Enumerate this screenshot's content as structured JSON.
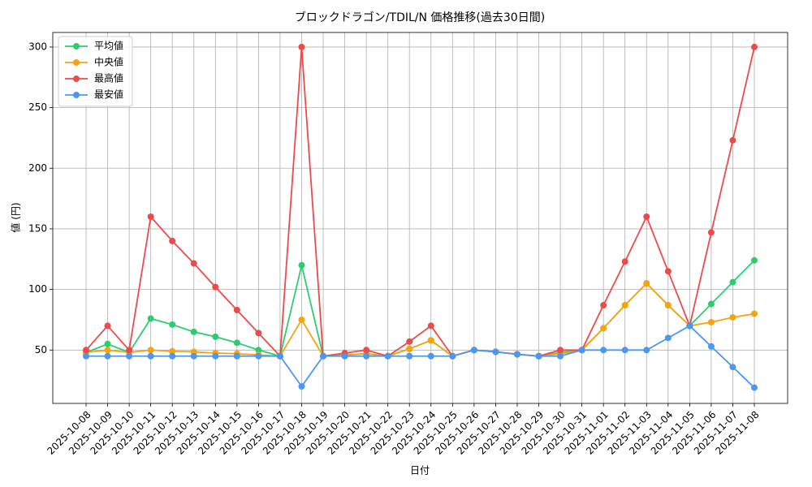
{
  "chart_data": {
    "type": "line",
    "title": "ブロックドラゴン/TDIL/N 価格推移(過去30日間)",
    "x_label": "日付",
    "y_label": "値 (円)",
    "categories": [
      "2025-10-08",
      "2025-10-09",
      "2025-10-10",
      "2025-10-11",
      "2025-10-12",
      "2025-10-13",
      "2025-10-14",
      "2025-10-15",
      "2025-10-16",
      "2025-10-17",
      "2025-10-18",
      "2025-10-19",
      "2025-10-20",
      "2025-10-21",
      "2025-10-22",
      "2025-10-23",
      "2025-10-24",
      "2025-10-25",
      "2025-10-26",
      "2025-10-27",
      "2025-10-28",
      "2025-10-29",
      "2025-10-30",
      "2025-10-31",
      "2025-11-01",
      "2025-11-02",
      "2025-11-03",
      "2025-11-04",
      "2025-11-05",
      "2025-11-06",
      "2025-11-07",
      "2025-11-08"
    ],
    "series": [
      {
        "name": "平均値",
        "color": "#2ecc71",
        "values": [
          48,
          55,
          48,
          76,
          71,
          65,
          61,
          56,
          50,
          45,
          120,
          45,
          46,
          47,
          45,
          51,
          58,
          45,
          50,
          48.5,
          46.5,
          45,
          48,
          50,
          68,
          87,
          105,
          87,
          70,
          88,
          106,
          124
        ]
      },
      {
        "name": "中央値",
        "color": "#f5a30f",
        "values": [
          48,
          50,
          48,
          50,
          49,
          48.5,
          47.5,
          47,
          46,
          45,
          75,
          45,
          46,
          47,
          45,
          51,
          58,
          45,
          50,
          48.5,
          46.5,
          45,
          47,
          50,
          68,
          87,
          105,
          87,
          70,
          73,
          77,
          80
        ]
      },
      {
        "name": "最高値",
        "color": "#ef4a4a",
        "values": [
          50,
          70,
          50,
          160,
          140,
          121.5,
          102,
          83,
          64,
          45,
          300,
          45,
          47.5,
          50,
          45,
          57,
          70,
          45,
          50,
          48.5,
          46.5,
          45,
          50,
          50,
          87,
          123,
          160,
          115,
          70,
          147,
          223,
          300
        ]
      },
      {
        "name": "最安値",
        "color": "#4c98f0",
        "values": [
          45,
          45,
          45,
          45,
          45,
          45,
          45,
          45,
          45,
          45,
          20,
          45,
          45,
          45,
          45,
          45,
          45,
          45,
          50,
          48.5,
          46.5,
          45,
          45,
          50,
          50,
          50,
          50,
          60,
          70,
          53,
          36,
          19
        ]
      }
    ],
    "ylim": [
      6,
      312
    ],
    "yticks": [
      50,
      100,
      150,
      200,
      250,
      300
    ],
    "grid": true,
    "legend": "upper left"
  }
}
